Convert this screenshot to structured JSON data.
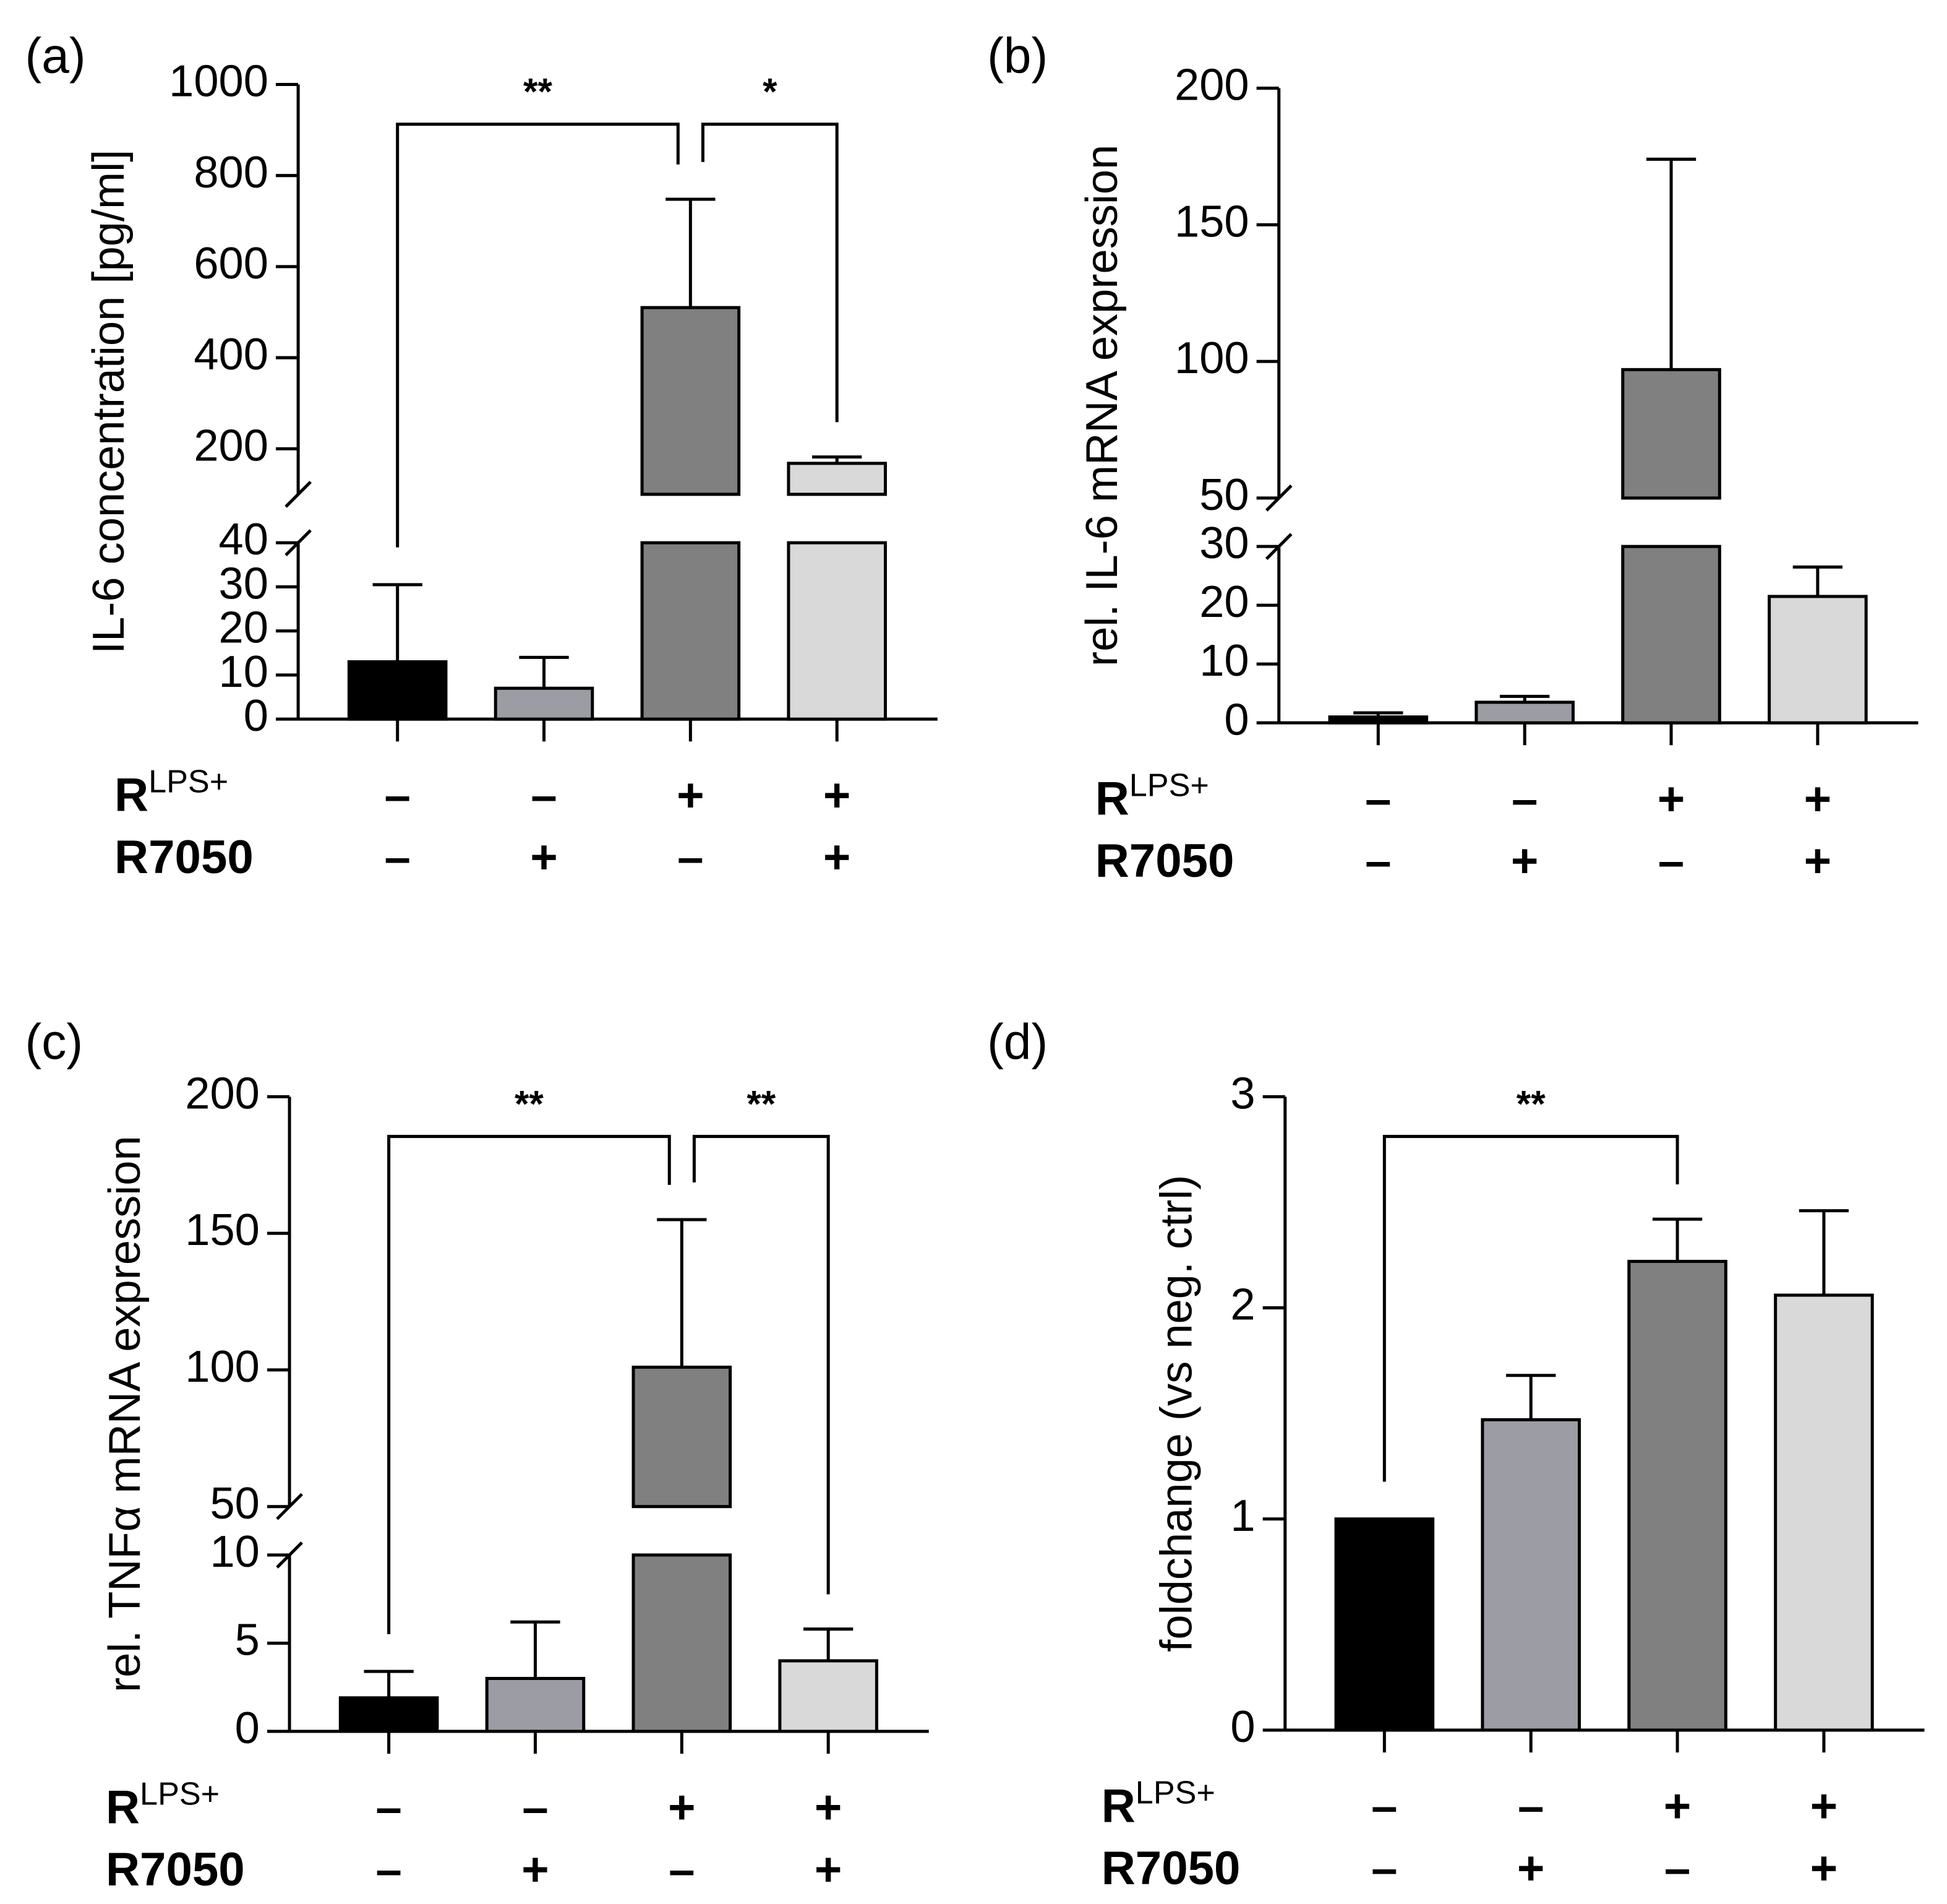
{
  "chart_data": [
    {
      "type": "bar",
      "panel_label": "(a)",
      "ylabel": "IL-6 concentration [pg/ml]",
      "segments": [
        {
          "ylim": [
            0,
            40
          ],
          "yticks": [
            0,
            10,
            20,
            30,
            40
          ]
        },
        {
          "ylim": [
            100,
            1000
          ],
          "yticks": [
            200,
            400,
            600,
            800,
            1000
          ]
        }
      ],
      "values": [
        13,
        7,
        510,
        168
      ],
      "errors": [
        17.5,
        7,
        238,
        14
      ],
      "colors": [
        "#000000",
        "#9c9ca4",
        "#808080",
        "#d9d9d9"
      ],
      "conditions": [
        {
          "name": "R",
          "superscript": "LPS+",
          "signs": [
            "–",
            "–",
            "+",
            "+"
          ]
        },
        {
          "name": "R7050",
          "signs": [
            "–",
            "+",
            "–",
            "+"
          ]
        }
      ],
      "significance": [
        {
          "between": [
            0,
            2
          ],
          "label": "**"
        },
        {
          "between": [
            2,
            3
          ],
          "label": "*"
        }
      ]
    },
    {
      "type": "bar",
      "panel_label": "(b)",
      "ylabel": "rel. IL-6 mRNA expression",
      "segments": [
        {
          "ylim": [
            0,
            30
          ],
          "yticks": [
            0,
            10,
            20,
            30
          ]
        },
        {
          "ylim": [
            50,
            200
          ],
          "yticks": [
            50,
            100,
            150,
            200
          ]
        }
      ],
      "values": [
        1,
        3.5,
        97,
        21.5
      ],
      "errors": [
        0.7,
        1,
        77,
        5
      ],
      "colors": [
        "#000000",
        "#9c9ca4",
        "#808080",
        "#d9d9d9"
      ],
      "conditions": [
        {
          "name": "R",
          "superscript": "LPS+",
          "signs": [
            "–",
            "–",
            "+",
            "+"
          ]
        },
        {
          "name": "R7050",
          "signs": [
            "–",
            "+",
            "–",
            "+"
          ]
        }
      ],
      "significance": []
    },
    {
      "type": "bar",
      "panel_label": "(c)",
      "ylabel": "rel. TNFα mRNA expression",
      "segments": [
        {
          "ylim": [
            0,
            10
          ],
          "yticks": [
            0,
            5,
            10
          ]
        },
        {
          "ylim": [
            50,
            200
          ],
          "yticks": [
            50,
            100,
            150,
            200
          ]
        }
      ],
      "values": [
        1.9,
        3.0,
        101,
        4.0
      ],
      "errors": [
        1.5,
        3.2,
        54,
        1.8
      ],
      "colors": [
        "#000000",
        "#9c9ca4",
        "#808080",
        "#d9d9d9"
      ],
      "conditions": [
        {
          "name": "R",
          "superscript": "LPS+",
          "signs": [
            "–",
            "–",
            "+",
            "+"
          ]
        },
        {
          "name": "R7050",
          "signs": [
            "–",
            "+",
            "–",
            "+"
          ]
        }
      ],
      "significance": [
        {
          "between": [
            0,
            2
          ],
          "label": "**"
        },
        {
          "between": [
            2,
            3
          ],
          "label": "**"
        }
      ]
    },
    {
      "type": "bar",
      "panel_label": "(d)",
      "ylabel": "foldchange (vs neg. ctrl)",
      "segments": [
        {
          "ylim": [
            0,
            3
          ],
          "yticks": [
            0,
            1,
            2,
            3
          ]
        }
      ],
      "values": [
        1.0,
        1.47,
        2.22,
        2.06
      ],
      "errors": [
        null,
        0.21,
        0.2,
        0.4
      ],
      "colors": [
        "#000000",
        "#9c9ca4",
        "#808080",
        "#d9d9d9"
      ],
      "conditions": [
        {
          "name": "R",
          "superscript": "LPS+",
          "signs": [
            "–",
            "–",
            "+",
            "+"
          ]
        },
        {
          "name": "R7050",
          "signs": [
            "–",
            "+",
            "–",
            "+"
          ]
        }
      ],
      "significance": [
        {
          "between": [
            0,
            2
          ],
          "label": "**"
        }
      ]
    }
  ]
}
